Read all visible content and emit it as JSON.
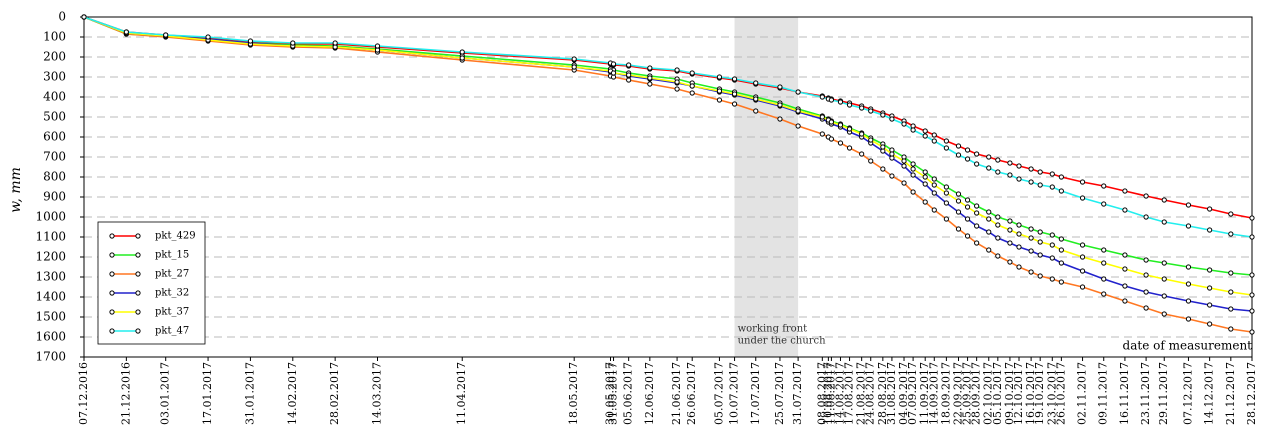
{
  "chart_data": {
    "type": "line",
    "ylabel": "w, mm",
    "xlabel": "date of measurement",
    "annotation": [
      "working front",
      "under the church"
    ],
    "shaded_span": [
      "10.07.2017",
      "31.07.2017"
    ],
    "shade_color": "#e3e3e3",
    "ylim": [
      0,
      1700
    ],
    "y_reversed": true,
    "yticks": [
      0,
      100,
      200,
      300,
      400,
      500,
      600,
      700,
      800,
      900,
      1000,
      1100,
      1200,
      1300,
      1400,
      1500,
      1600,
      1700
    ],
    "grid": true,
    "legend": "lower left",
    "x": [
      "07.12.2016",
      "21.12.2016",
      "03.01.2017",
      "17.01.2017",
      "31.01.2017",
      "14.02.2017",
      "28.02.2017",
      "14.03.2017",
      "11.04.2017",
      "18.05.2017",
      "30.05.2017",
      "31.05.2017",
      "05.06.2017",
      "12.06.2017",
      "21.06.2017",
      "26.06.2017",
      "05.07.2017",
      "10.07.2017",
      "17.07.2017",
      "25.07.2017",
      "31.07.2017",
      "08.08.2017",
      "10.08.2017",
      "11.08.2017",
      "14.08.2017",
      "17.08.2017",
      "21.08.2017",
      "24.08.2017",
      "28.08.2017",
      "31.08.2017",
      "04.09.2017",
      "07.09.2017",
      "11.09.2017",
      "14.09.2017",
      "18.09.2017",
      "22.09.2017",
      "25.09.2017",
      "28.09.2017",
      "02.10.2017",
      "05.10.2017",
      "09.10.2017",
      "12.10.2017",
      "16.10.2017",
      "19.10.2017",
      "23.10.2017",
      "26.10.2017",
      "02.11.2017",
      "09.11.2017",
      "16.11.2017",
      "23.11.2017",
      "29.11.2017",
      "07.12.2017",
      "14.12.2017",
      "21.12.2017",
      "28.12.2017"
    ],
    "series": [
      {
        "name": "pkt_429",
        "color": "#ff0000",
        "values": [
          0,
          75,
          90,
          105,
          125,
          135,
          135,
          150,
          180,
          215,
          235,
          240,
          245,
          260,
          270,
          285,
          305,
          315,
          335,
          355,
          375,
          395,
          405,
          410,
          420,
          430,
          445,
          460,
          480,
          495,
          520,
          545,
          570,
          590,
          620,
          645,
          665,
          685,
          700,
          715,
          730,
          745,
          760,
          775,
          785,
          800,
          825,
          845,
          870,
          895,
          915,
          940,
          960,
          985,
          1005
        ]
      },
      {
        "name": "pkt_15",
        "color": "#22ee22",
        "values": [
          0,
          85,
          95,
          110,
          130,
          140,
          145,
          160,
          195,
          240,
          260,
          265,
          280,
          295,
          310,
          330,
          360,
          375,
          400,
          430,
          460,
          495,
          510,
          520,
          535,
          555,
          580,
          605,
          635,
          665,
          700,
          735,
          775,
          810,
          850,
          885,
          915,
          945,
          975,
          1000,
          1020,
          1040,
          1060,
          1075,
          1090,
          1110,
          1140,
          1165,
          1190,
          1215,
          1230,
          1250,
          1265,
          1280,
          1290
        ]
      },
      {
        "name": "pkt_27",
        "color": "#ff7722",
        "values": [
          0,
          85,
          100,
          120,
          140,
          150,
          155,
          175,
          215,
          265,
          295,
          300,
          315,
          335,
          360,
          380,
          415,
          435,
          470,
          510,
          545,
          585,
          600,
          610,
          630,
          655,
          685,
          720,
          760,
          795,
          830,
          875,
          925,
          965,
          1010,
          1060,
          1095,
          1130,
          1165,
          1195,
          1225,
          1250,
          1275,
          1295,
          1310,
          1325,
          1350,
          1385,
          1420,
          1455,
          1485,
          1510,
          1535,
          1560,
          1575
        ]
      },
      {
        "name": "pkt_32",
        "color": "#2222cc",
        "values": [
          0,
          80,
          95,
          110,
          130,
          145,
          150,
          165,
          205,
          250,
          275,
          280,
          295,
          310,
          330,
          345,
          375,
          390,
          415,
          445,
          475,
          510,
          525,
          535,
          550,
          575,
          600,
          630,
          670,
          705,
          745,
          790,
          835,
          880,
          930,
          975,
          1010,
          1045,
          1075,
          1105,
          1130,
          1150,
          1170,
          1190,
          1205,
          1230,
          1270,
          1310,
          1345,
          1375,
          1395,
          1420,
          1440,
          1460,
          1470
        ]
      },
      {
        "name": "pkt_37",
        "color": "#ffff00",
        "values": [
          0,
          80,
          95,
          115,
          135,
          145,
          150,
          165,
          205,
          250,
          270,
          280,
          290,
          305,
          325,
          345,
          370,
          385,
          410,
          440,
          470,
          500,
          515,
          525,
          540,
          560,
          585,
          615,
          650,
          685,
          720,
          760,
          800,
          840,
          880,
          920,
          950,
          980,
          1010,
          1040,
          1065,
          1085,
          1105,
          1125,
          1140,
          1165,
          1200,
          1230,
          1260,
          1290,
          1310,
          1335,
          1355,
          1375,
          1390
        ]
      },
      {
        "name": "pkt_47",
        "color": "#22eeee",
        "values": [
          0,
          75,
          90,
          100,
          120,
          130,
          130,
          145,
          175,
          210,
          230,
          235,
          240,
          255,
          265,
          280,
          300,
          310,
          330,
          350,
          375,
          400,
          410,
          415,
          425,
          440,
          455,
          470,
          490,
          510,
          535,
          565,
          595,
          620,
          655,
          690,
          710,
          735,
          755,
          775,
          790,
          810,
          825,
          840,
          850,
          870,
          905,
          935,
          965,
          1000,
          1025,
          1045,
          1065,
          1085,
          1100
        ]
      }
    ]
  }
}
